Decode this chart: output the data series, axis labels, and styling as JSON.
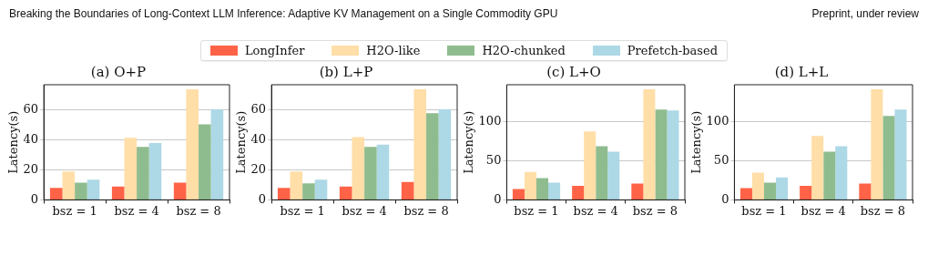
{
  "chart_data": [
    {
      "type": "bar",
      "title": "(a) O+P",
      "ylabel": "Latency(s)",
      "categories": [
        "bsz = 1",
        "bsz = 4",
        "bsz = 8"
      ],
      "ylim": [
        0,
        77
      ],
      "yticks": [
        0,
        20,
        40,
        60
      ],
      "grid": "y",
      "legend": "top",
      "annotations": [
        "Breaking the Boundaries of Long-Context LLM Inference: Adaptive KV Management on a Single Commodity GPU",
        "Preprint,  under review"
      ],
      "series": [
        {
          "name": "LongInfer",
          "color": "#ff6347",
          "values": [
            8,
            9,
            11.5
          ]
        },
        {
          "name": "H2O-like",
          "color": "#ffdea8",
          "values": [
            19,
            41.5,
            74
          ]
        },
        {
          "name": "H2O-chunked",
          "color": "#8fbc8f",
          "values": [
            11.5,
            35.5,
            50.5
          ]
        },
        {
          "name": "Prefetch-based",
          "color": "#add8e6",
          "values": [
            13.5,
            38,
            60.5
          ]
        }
      ]
    },
    {
      "type": "bar",
      "title": "(b) L+P",
      "ylabel": "Latency(s)",
      "categories": [
        "bsz = 1",
        "bsz = 4",
        "bsz = 8"
      ],
      "ylim": [
        0,
        77
      ],
      "yticks": [
        0,
        20,
        40,
        60
      ],
      "grid": "y",
      "series": [
        {
          "color": "#ff6347",
          "values": [
            8,
            9,
            12
          ]
        },
        {
          "color": "#ffdea8",
          "values": [
            19,
            42,
            74
          ]
        },
        {
          "color": "#8fbc8f",
          "values": [
            11,
            35.5,
            58
          ]
        },
        {
          "color": "#add8e6",
          "values": [
            13.5,
            37,
            60.5
          ]
        }
      ]
    },
    {
      "type": "bar",
      "title": "(c) L+O",
      "ylabel": "Latency(s)",
      "categories": [
        "bsz = 1",
        "bsz = 4",
        "bsz = 8"
      ],
      "ylim": [
        0,
        148
      ],
      "yticks": [
        0,
        50,
        100
      ],
      "grid": "y",
      "series": [
        {
          "color": "#ff6347",
          "values": [
            14,
            18,
            21
          ]
        },
        {
          "color": "#ffdea8",
          "values": [
            36,
            88,
            142
          ]
        },
        {
          "color": "#8fbc8f",
          "values": [
            28,
            69,
            116
          ]
        },
        {
          "color": "#add8e6",
          "values": [
            22,
            62,
            115
          ]
        }
      ]
    },
    {
      "type": "bar",
      "title": "(d) L+L",
      "ylabel": "Latency(s)",
      "categories": [
        "bsz = 1",
        "bsz = 4",
        "bsz = 8"
      ],
      "ylim": [
        0,
        148
      ],
      "yticks": [
        0,
        50,
        100
      ],
      "grid": "y",
      "series": [
        {
          "color": "#ff6347",
          "values": [
            15,
            18,
            21
          ]
        },
        {
          "color": "#ffdea8",
          "values": [
            35,
            82,
            142
          ]
        },
        {
          "color": "#8fbc8f",
          "values": [
            22,
            62,
            108
          ]
        },
        {
          "color": "#add8e6",
          "values": [
            29,
            69,
            116
          ]
        }
      ]
    }
  ]
}
